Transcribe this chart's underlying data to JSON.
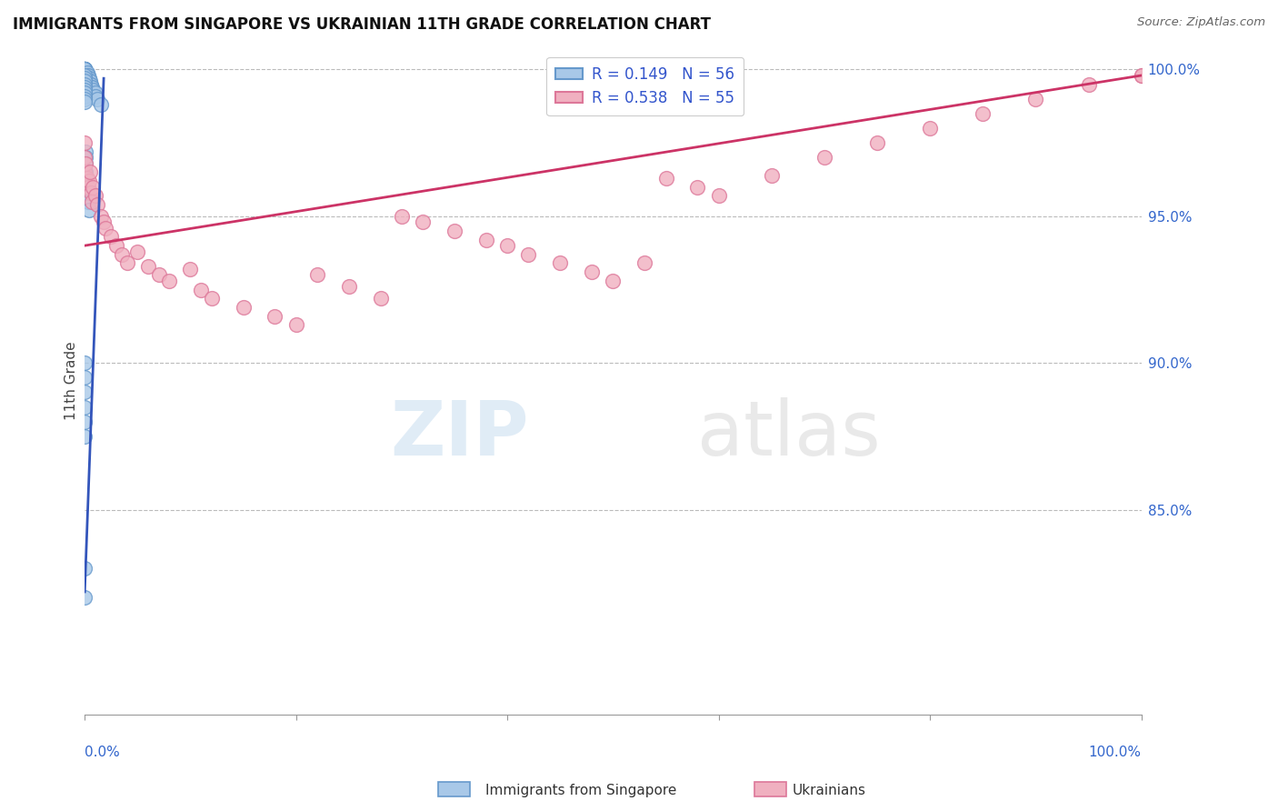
{
  "title": "IMMIGRANTS FROM SINGAPORE VS UKRAINIAN 11TH GRADE CORRELATION CHART",
  "source": "Source: ZipAtlas.com",
  "ylabel": "11th Grade",
  "ylabel_right_labels": [
    "100.0%",
    "95.0%",
    "90.0%",
    "85.0%"
  ],
  "ylabel_right_values": [
    1.0,
    0.95,
    0.9,
    0.85
  ],
  "legend_blue_r": "0.149",
  "legend_blue_n": "56",
  "legend_pink_r": "0.538",
  "legend_pink_n": "55",
  "blue_color": "#a8c8e8",
  "pink_color": "#f0b0c0",
  "blue_edge_color": "#6699cc",
  "pink_edge_color": "#dd7799",
  "blue_line_color": "#3355bb",
  "pink_line_color": "#cc3366",
  "xlim": [
    0.0,
    1.0
  ],
  "ylim": [
    0.78,
    1.008
  ],
  "blue_scatter_x": [
    0.0,
    0.0,
    0.0,
    0.0,
    0.0,
    0.0,
    0.0,
    0.0,
    0.0,
    0.0,
    0.002,
    0.002,
    0.002,
    0.002,
    0.003,
    0.003,
    0.003,
    0.004,
    0.004,
    0.005,
    0.005,
    0.006,
    0.006,
    0.007,
    0.008,
    0.01,
    0.01,
    0.012,
    0.015,
    0.0,
    0.0,
    0.0,
    0.0,
    0.0,
    0.0,
    0.0,
    0.0,
    0.0,
    0.0,
    0.001,
    0.001,
    0.001,
    0.001,
    0.001,
    0.001,
    0.002,
    0.003,
    0.004,
    0.0,
    0.0,
    0.0,
    0.0,
    0.0,
    0.0,
    0.0,
    0.0
  ],
  "blue_scatter_y": [
    1.0,
    1.0,
    1.0,
    1.0,
    1.0,
    1.0,
    1.0,
    1.0,
    1.0,
    1.0,
    0.999,
    0.998,
    0.997,
    0.996,
    0.998,
    0.997,
    0.996,
    0.997,
    0.996,
    0.996,
    0.995,
    0.995,
    0.994,
    0.994,
    0.993,
    0.992,
    0.991,
    0.99,
    0.988,
    0.998,
    0.997,
    0.996,
    0.995,
    0.994,
    0.993,
    0.992,
    0.991,
    0.99,
    0.989,
    0.972,
    0.97,
    0.968,
    0.965,
    0.963,
    0.96,
    0.958,
    0.955,
    0.952,
    0.9,
    0.895,
    0.89,
    0.885,
    0.88,
    0.875,
    0.83,
    0.82
  ],
  "pink_scatter_x": [
    0.0,
    0.0,
    0.0,
    0.001,
    0.002,
    0.003,
    0.004,
    0.005,
    0.006,
    0.007,
    0.008,
    0.01,
    0.012,
    0.015,
    0.018,
    0.02,
    0.025,
    0.03,
    0.035,
    0.04,
    0.05,
    0.06,
    0.07,
    0.08,
    0.1,
    0.11,
    0.12,
    0.15,
    0.18,
    0.2,
    0.22,
    0.25,
    0.28,
    0.3,
    0.32,
    0.35,
    0.38,
    0.4,
    0.42,
    0.45,
    0.48,
    0.5,
    0.53,
    0.55,
    0.58,
    0.6,
    0.65,
    0.7,
    0.75,
    0.8,
    0.85,
    0.9,
    0.95,
    1.0,
    1.0
  ],
  "pink_scatter_y": [
    0.975,
    0.97,
    0.965,
    0.968,
    0.963,
    0.96,
    0.962,
    0.965,
    0.958,
    0.955,
    0.96,
    0.957,
    0.954,
    0.95,
    0.948,
    0.946,
    0.943,
    0.94,
    0.937,
    0.934,
    0.938,
    0.933,
    0.93,
    0.928,
    0.932,
    0.925,
    0.922,
    0.919,
    0.916,
    0.913,
    0.93,
    0.926,
    0.922,
    0.95,
    0.948,
    0.945,
    0.942,
    0.94,
    0.937,
    0.934,
    0.931,
    0.928,
    0.934,
    0.963,
    0.96,
    0.957,
    0.964,
    0.97,
    0.975,
    0.98,
    0.985,
    0.99,
    0.995,
    0.998,
    0.998
  ],
  "blue_line_x": [
    0.0,
    0.018
  ],
  "blue_line_y": [
    0.822,
    0.997
  ],
  "pink_line_x": [
    0.0,
    1.0
  ],
  "pink_line_y": [
    0.94,
    0.998
  ],
  "bottom_legend_blue_label": "Immigrants from Singapore",
  "bottom_legend_pink_label": "Ukrainians"
}
